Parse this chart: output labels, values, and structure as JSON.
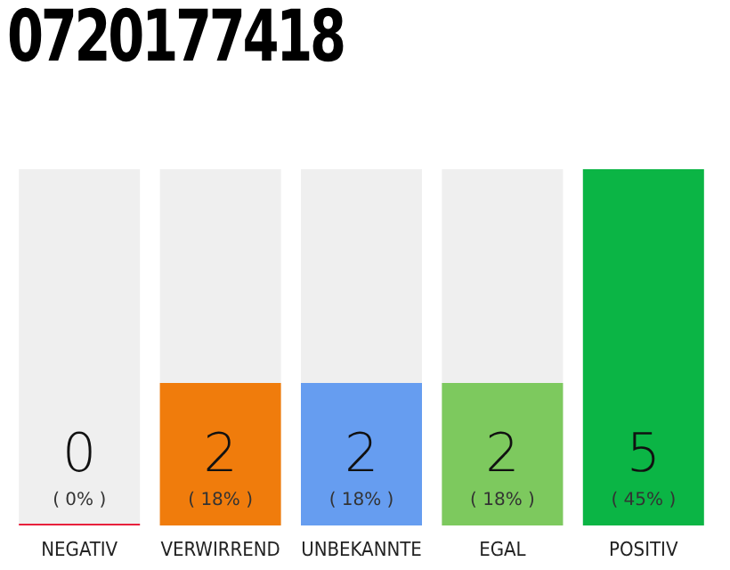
{
  "chart_data": {
    "type": "bar",
    "title": "0720177418",
    "categories": [
      "NEGATIV",
      "VERWIRREND",
      "UNBEKANNTE",
      "EGAL",
      "POSITIV"
    ],
    "values": [
      0,
      2,
      2,
      2,
      5
    ],
    "colors": [
      "#e8203c",
      "#f07c0c",
      "#669df0",
      "#7dc95e",
      "#0bb545"
    ],
    "value_labels": [
      "0\n( 0% )",
      "2\n( 18% )",
      "2\n( 18% )",
      "2\n( 18% )",
      "5\n( 45% )"
    ],
    "ylim": [
      0,
      5
    ],
    "tick_labels": "x"
  }
}
